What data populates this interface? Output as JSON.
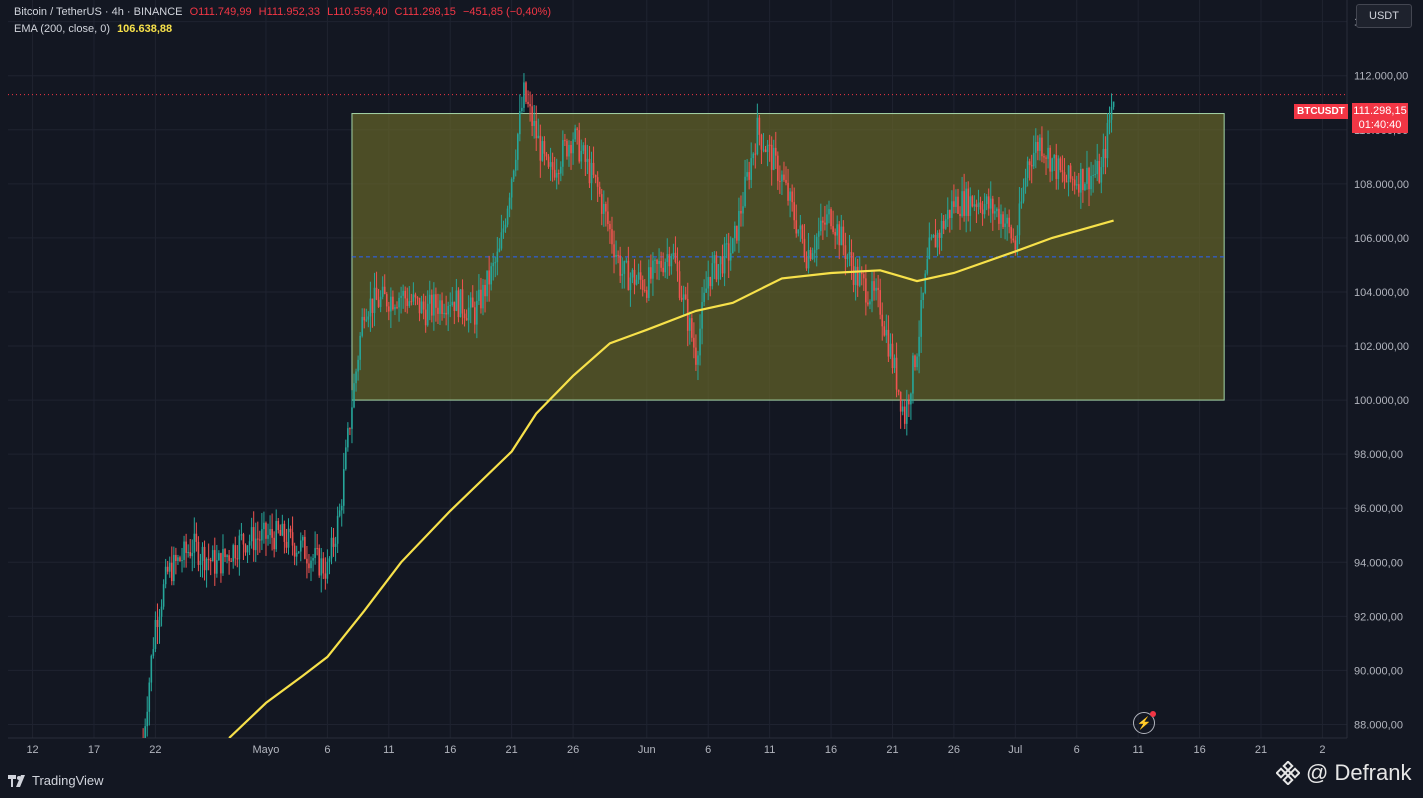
{
  "header": {
    "symbol": "Bitcoin / TetherUS · 4h · BINANCE",
    "open": "O111.749,99",
    "high": "H111.952,33",
    "low": "L110.559,40",
    "close": "C111.298,15",
    "change": "−451,85 (−0,40%)",
    "ema_label": "EMA (200, close, 0)",
    "ema_value": "106.638,88"
  },
  "currency": "USDT",
  "price_badge": {
    "symbol": "BTCUSDT",
    "price": "111.298,15",
    "countdown": "01:40:40"
  },
  "footer": {
    "brand": "TradingView",
    "watermark": "@ Defrank"
  },
  "icons": {
    "alert": "lightning-alert-icon",
    "brand": "tradingview-logo-icon",
    "watermark": "binance-logo-icon"
  },
  "colors": {
    "background": "#131722",
    "up": "#26a69a",
    "down": "#ef5350",
    "ema": "#f7e14a",
    "range_fill": "#6b6a2a",
    "range_border": "#a5d6a7",
    "price_line": "#f23645",
    "mid_line": "#2962ff"
  },
  "chart_data": {
    "type": "candlestick",
    "y_axis": {
      "min": 87500,
      "max": 114800,
      "ticks": [
        "88.000,00",
        "90.000,00",
        "92.000,00",
        "94.000,00",
        "96.000,00",
        "98.000,00",
        "100.000,00",
        "102.000,00",
        "104.000,00",
        "106.000,00",
        "108.000,00",
        "110.000,00",
        "112.000,00",
        "114.000,00"
      ],
      "tick_values": [
        88000,
        90000,
        92000,
        94000,
        96000,
        98000,
        100000,
        102000,
        104000,
        106000,
        108000,
        110000,
        112000,
        114000
      ]
    },
    "x_axis": {
      "labels": [
        "12",
        "17",
        "22",
        "Mayo",
        "6",
        "11",
        "16",
        "21",
        "26",
        "Jun",
        "6",
        "11",
        "16",
        "21",
        "26",
        "Jul",
        "6",
        "11",
        "16",
        "21",
        "2"
      ],
      "dates": [
        "2025-04-12",
        "2025-04-17",
        "2025-04-22",
        "2025-05-01",
        "2025-05-06",
        "2025-05-11",
        "2025-05-16",
        "2025-05-21",
        "2025-05-26",
        "2025-06-01",
        "2025-06-06",
        "2025-06-11",
        "2025-06-16",
        "2025-06-21",
        "2025-06-26",
        "2025-07-01",
        "2025-07-06",
        "2025-07-11",
        "2025-07-16",
        "2025-07-21",
        "2025-07-26"
      ]
    },
    "range_box": {
      "start": "2025-05-08",
      "end": "2025-07-18",
      "top": 110600,
      "bottom": 100000,
      "mid": 105300
    },
    "last_price": 111298.15,
    "price_path": [
      {
        "date": "2025-04-21",
        "price": 87500
      },
      {
        "date": "2025-04-22",
        "price": 91800
      },
      {
        "date": "2025-04-23",
        "price": 93600
      },
      {
        "date": "2025-04-25",
        "price": 94600
      },
      {
        "date": "2025-04-27",
        "price": 93900
      },
      {
        "date": "2025-04-29",
        "price": 94800
      },
      {
        "date": "2025-05-02",
        "price": 95000
      },
      {
        "date": "2025-05-04",
        "price": 94500
      },
      {
        "date": "2025-05-06",
        "price": 93700
      },
      {
        "date": "2025-05-07",
        "price": 95800
      },
      {
        "date": "2025-05-08",
        "price": 99900
      },
      {
        "date": "2025-05-09",
        "price": 103500
      },
      {
        "date": "2025-05-12",
        "price": 103900
      },
      {
        "date": "2025-05-14",
        "price": 103300
      },
      {
        "date": "2025-05-16",
        "price": 103800
      },
      {
        "date": "2025-05-18",
        "price": 103200
      },
      {
        "date": "2025-05-20",
        "price": 105400
      },
      {
        "date": "2025-05-22",
        "price": 111300
      },
      {
        "date": "2025-05-24",
        "price": 108300
      },
      {
        "date": "2025-05-26",
        "price": 109800
      },
      {
        "date": "2025-05-28",
        "price": 107800
      },
      {
        "date": "2025-05-30",
        "price": 104700
      },
      {
        "date": "2025-06-01",
        "price": 104300
      },
      {
        "date": "2025-06-03",
        "price": 105600
      },
      {
        "date": "2025-06-05",
        "price": 101700
      },
      {
        "date": "2025-06-06",
        "price": 104600
      },
      {
        "date": "2025-06-08",
        "price": 105600
      },
      {
        "date": "2025-06-10",
        "price": 110000
      },
      {
        "date": "2025-06-12",
        "price": 108200
      },
      {
        "date": "2025-06-14",
        "price": 105400
      },
      {
        "date": "2025-06-16",
        "price": 106900
      },
      {
        "date": "2025-06-18",
        "price": 104600
      },
      {
        "date": "2025-06-20",
        "price": 103500
      },
      {
        "date": "2025-06-22",
        "price": 99400
      },
      {
        "date": "2025-06-23",
        "price": 102000
      },
      {
        "date": "2025-06-24",
        "price": 105500
      },
      {
        "date": "2025-06-26",
        "price": 107300
      },
      {
        "date": "2025-06-28",
        "price": 107400
      },
      {
        "date": "2025-06-30",
        "price": 106800
      },
      {
        "date": "2025-07-01",
        "price": 105700
      },
      {
        "date": "2025-07-02",
        "price": 108800
      },
      {
        "date": "2025-07-03",
        "price": 109600
      },
      {
        "date": "2025-07-05",
        "price": 108100
      },
      {
        "date": "2025-07-07",
        "price": 108300
      },
      {
        "date": "2025-07-08",
        "price": 108400
      },
      {
        "date": "2025-07-09",
        "price": 111298
      }
    ],
    "ema": {
      "label": "EMA (200, close, 0)",
      "points": [
        {
          "date": "2025-04-28",
          "value": 87500
        },
        {
          "date": "2025-05-01",
          "value": 88800
        },
        {
          "date": "2025-05-04",
          "value": 89800
        },
        {
          "date": "2025-05-06",
          "value": 90500
        },
        {
          "date": "2025-05-09",
          "value": 92200
        },
        {
          "date": "2025-05-12",
          "value": 94000
        },
        {
          "date": "2025-05-16",
          "value": 95900
        },
        {
          "date": "2025-05-21",
          "value": 98100
        },
        {
          "date": "2025-05-23",
          "value": 99500
        },
        {
          "date": "2025-05-26",
          "value": 100900
        },
        {
          "date": "2025-05-29",
          "value": 102100
        },
        {
          "date": "2025-06-01",
          "value": 102600
        },
        {
          "date": "2025-06-05",
          "value": 103300
        },
        {
          "date": "2025-06-08",
          "value": 103600
        },
        {
          "date": "2025-06-12",
          "value": 104500
        },
        {
          "date": "2025-06-16",
          "value": 104700
        },
        {
          "date": "2025-06-20",
          "value": 104800
        },
        {
          "date": "2025-06-23",
          "value": 104400
        },
        {
          "date": "2025-06-26",
          "value": 104700
        },
        {
          "date": "2025-07-01",
          "value": 105500
        },
        {
          "date": "2025-07-04",
          "value": 106000
        },
        {
          "date": "2025-07-09",
          "value": 106638.88
        }
      ]
    },
    "grid": true,
    "legend": "top-left"
  }
}
